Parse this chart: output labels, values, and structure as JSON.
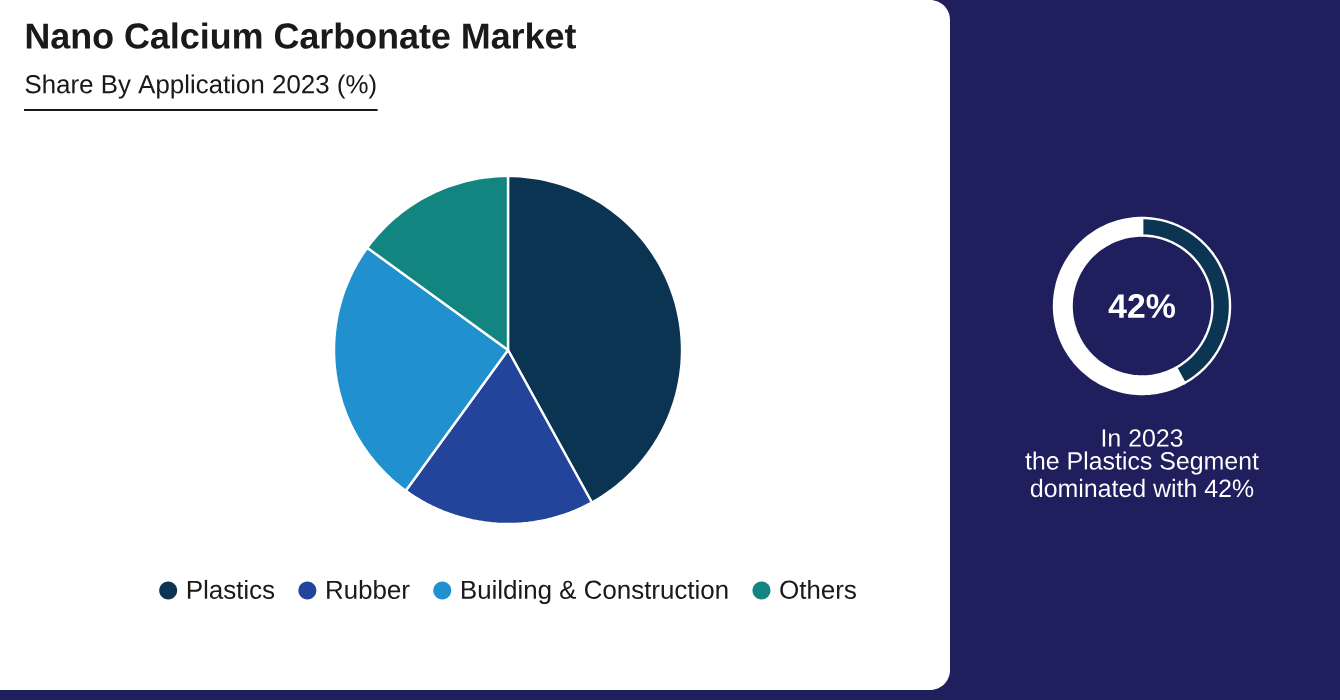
{
  "chart_data": [
    {
      "type": "pie",
      "title": "Nano Calcium Carbonate Market",
      "subtitle": "Share By Application 2023 (%)",
      "categories": [
        "Plastics",
        "Rubber",
        "Building & Construction",
        "Others"
      ],
      "values": [
        42,
        18,
        25,
        15
      ],
      "colors": [
        "#0b3352",
        "#22449a",
        "#2190cf",
        "#128580"
      ],
      "legend": "bottom"
    },
    {
      "type": "donut",
      "categories": [
        null,
        null
      ],
      "values": [
        42,
        58
      ],
      "colors": [
        "#0b3552",
        "#ffffff"
      ],
      "annotations": [
        "42%",
        "In 2023",
        "the Plastics Segment",
        "dominated with 42%"
      ]
    }
  ]
}
